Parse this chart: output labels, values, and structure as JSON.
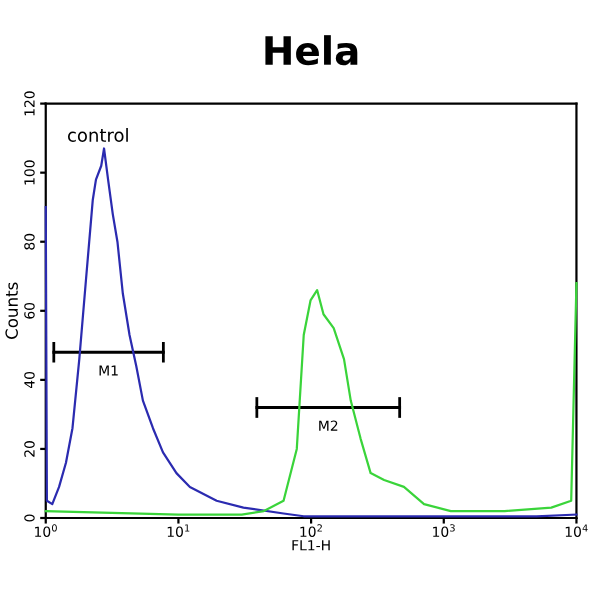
{
  "chart_data": {
    "type": "line",
    "title": "Hela",
    "xlabel": "FL1-H",
    "ylabel": "Counts",
    "log": "x",
    "xlim": [
      1,
      10000
    ],
    "xticks": [
      {
        "value": 1,
        "label": "10$^{0}$"
      },
      {
        "value": 10,
        "label": "10$^{1}$"
      },
      {
        "value": 100,
        "label": "10$^{2}$"
      },
      {
        "value": 1000,
        "label": "10$^{3}$"
      },
      {
        "value": 10000,
        "label": "10$^{4}$"
      }
    ],
    "ylim": [
      0,
      120
    ],
    "yticks": [
      0,
      20,
      40,
      60,
      80,
      100,
      120
    ],
    "grid": false,
    "legend": false,
    "series": [
      {
        "color": "#2b2bb0",
        "x": [
          1,
          1.02,
          1.12,
          1.26,
          1.42,
          1.59,
          1.79,
          2.01,
          2.26,
          2.39,
          2.62,
          2.75,
          2.95,
          3.2,
          3.47,
          3.81,
          4.28,
          4.81,
          5.4,
          6.43,
          7.65,
          9.66,
          12.2,
          19.4,
          30.9,
          62,
          88,
          200,
          1000,
          5000,
          10000
        ],
        "values": [
          90,
          5,
          4,
          9,
          16,
          26,
          46,
          69,
          92,
          98,
          102,
          107,
          98,
          88,
          80,
          65,
          53,
          44,
          34,
          26,
          19,
          13,
          9,
          5,
          3,
          1.3,
          0.5,
          0.5,
          0.5,
          0.5,
          1
        ]
      },
      {
        "color": "#3ad43a",
        "x": [
          1,
          10,
          30,
          44,
          62,
          78,
          88,
          99,
          111,
          124,
          148,
          177,
          199,
          236,
          281,
          355,
          501,
          710,
          1130,
          2880,
          6460,
          9130,
          10000
        ],
        "values": [
          2,
          1,
          1,
          2,
          5,
          20,
          53,
          63,
          66,
          59,
          55,
          46,
          34,
          23,
          13,
          11,
          9,
          4,
          2,
          2,
          3,
          5,
          68
        ]
      },
      {
        "color": "#000000",
        "x": [
          1.15,
          7.7
        ],
        "values": [
          48,
          48
        ],
        "errors": [
          3,
          3
        ]
      },
      {
        "color": "#000000",
        "x": [
          39,
          465
        ],
        "values": [
          32,
          32
        ],
        "errors": [
          3,
          3
        ]
      }
    ],
    "annotations": [
      "control",
      "M1",
      "M2"
    ]
  }
}
